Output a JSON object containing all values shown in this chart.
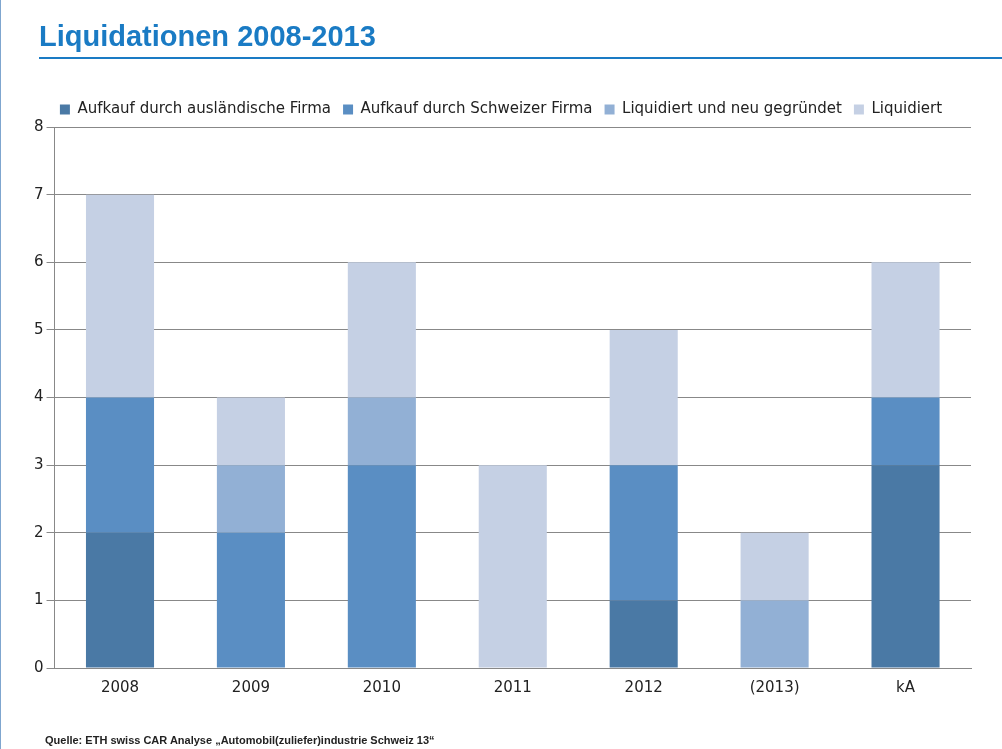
{
  "chart_data": {
    "type": "bar",
    "title": "Liquidationen 2008-2013",
    "categories": [
      "2008",
      "2009",
      "2010",
      "2011",
      "2012",
      "(2013)",
      "kA"
    ],
    "stacked": true,
    "series": [
      {
        "name": "Aufkauf durch ausländische Firma",
        "color": "#4a79a5",
        "values": [
          2,
          0,
          0,
          0,
          1,
          0,
          3
        ]
      },
      {
        "name": "Aufkauf durch Schweizer Firma",
        "color": "#5a8ec3",
        "values": [
          2,
          2,
          3,
          0,
          2,
          0,
          1
        ]
      },
      {
        "name": "Liquidiert und neu gegründet",
        "color": "#92b0d5",
        "values": [
          0,
          1,
          1,
          0,
          0,
          1,
          0
        ]
      },
      {
        "name": "Liquidiert",
        "color": "#c5d0e4",
        "values": [
          3,
          1,
          2,
          3,
          2,
          1,
          2
        ]
      }
    ],
    "ylim": [
      0,
      8
    ],
    "yticks": [
      0,
      1,
      2,
      3,
      4,
      5,
      6,
      7,
      8
    ],
    "grid": "y",
    "legend": "top",
    "annotations": [
      "Quelle: ETH swiss CAR Analyse „Automobil(zuliefer)industrie Schweiz 13“"
    ]
  }
}
